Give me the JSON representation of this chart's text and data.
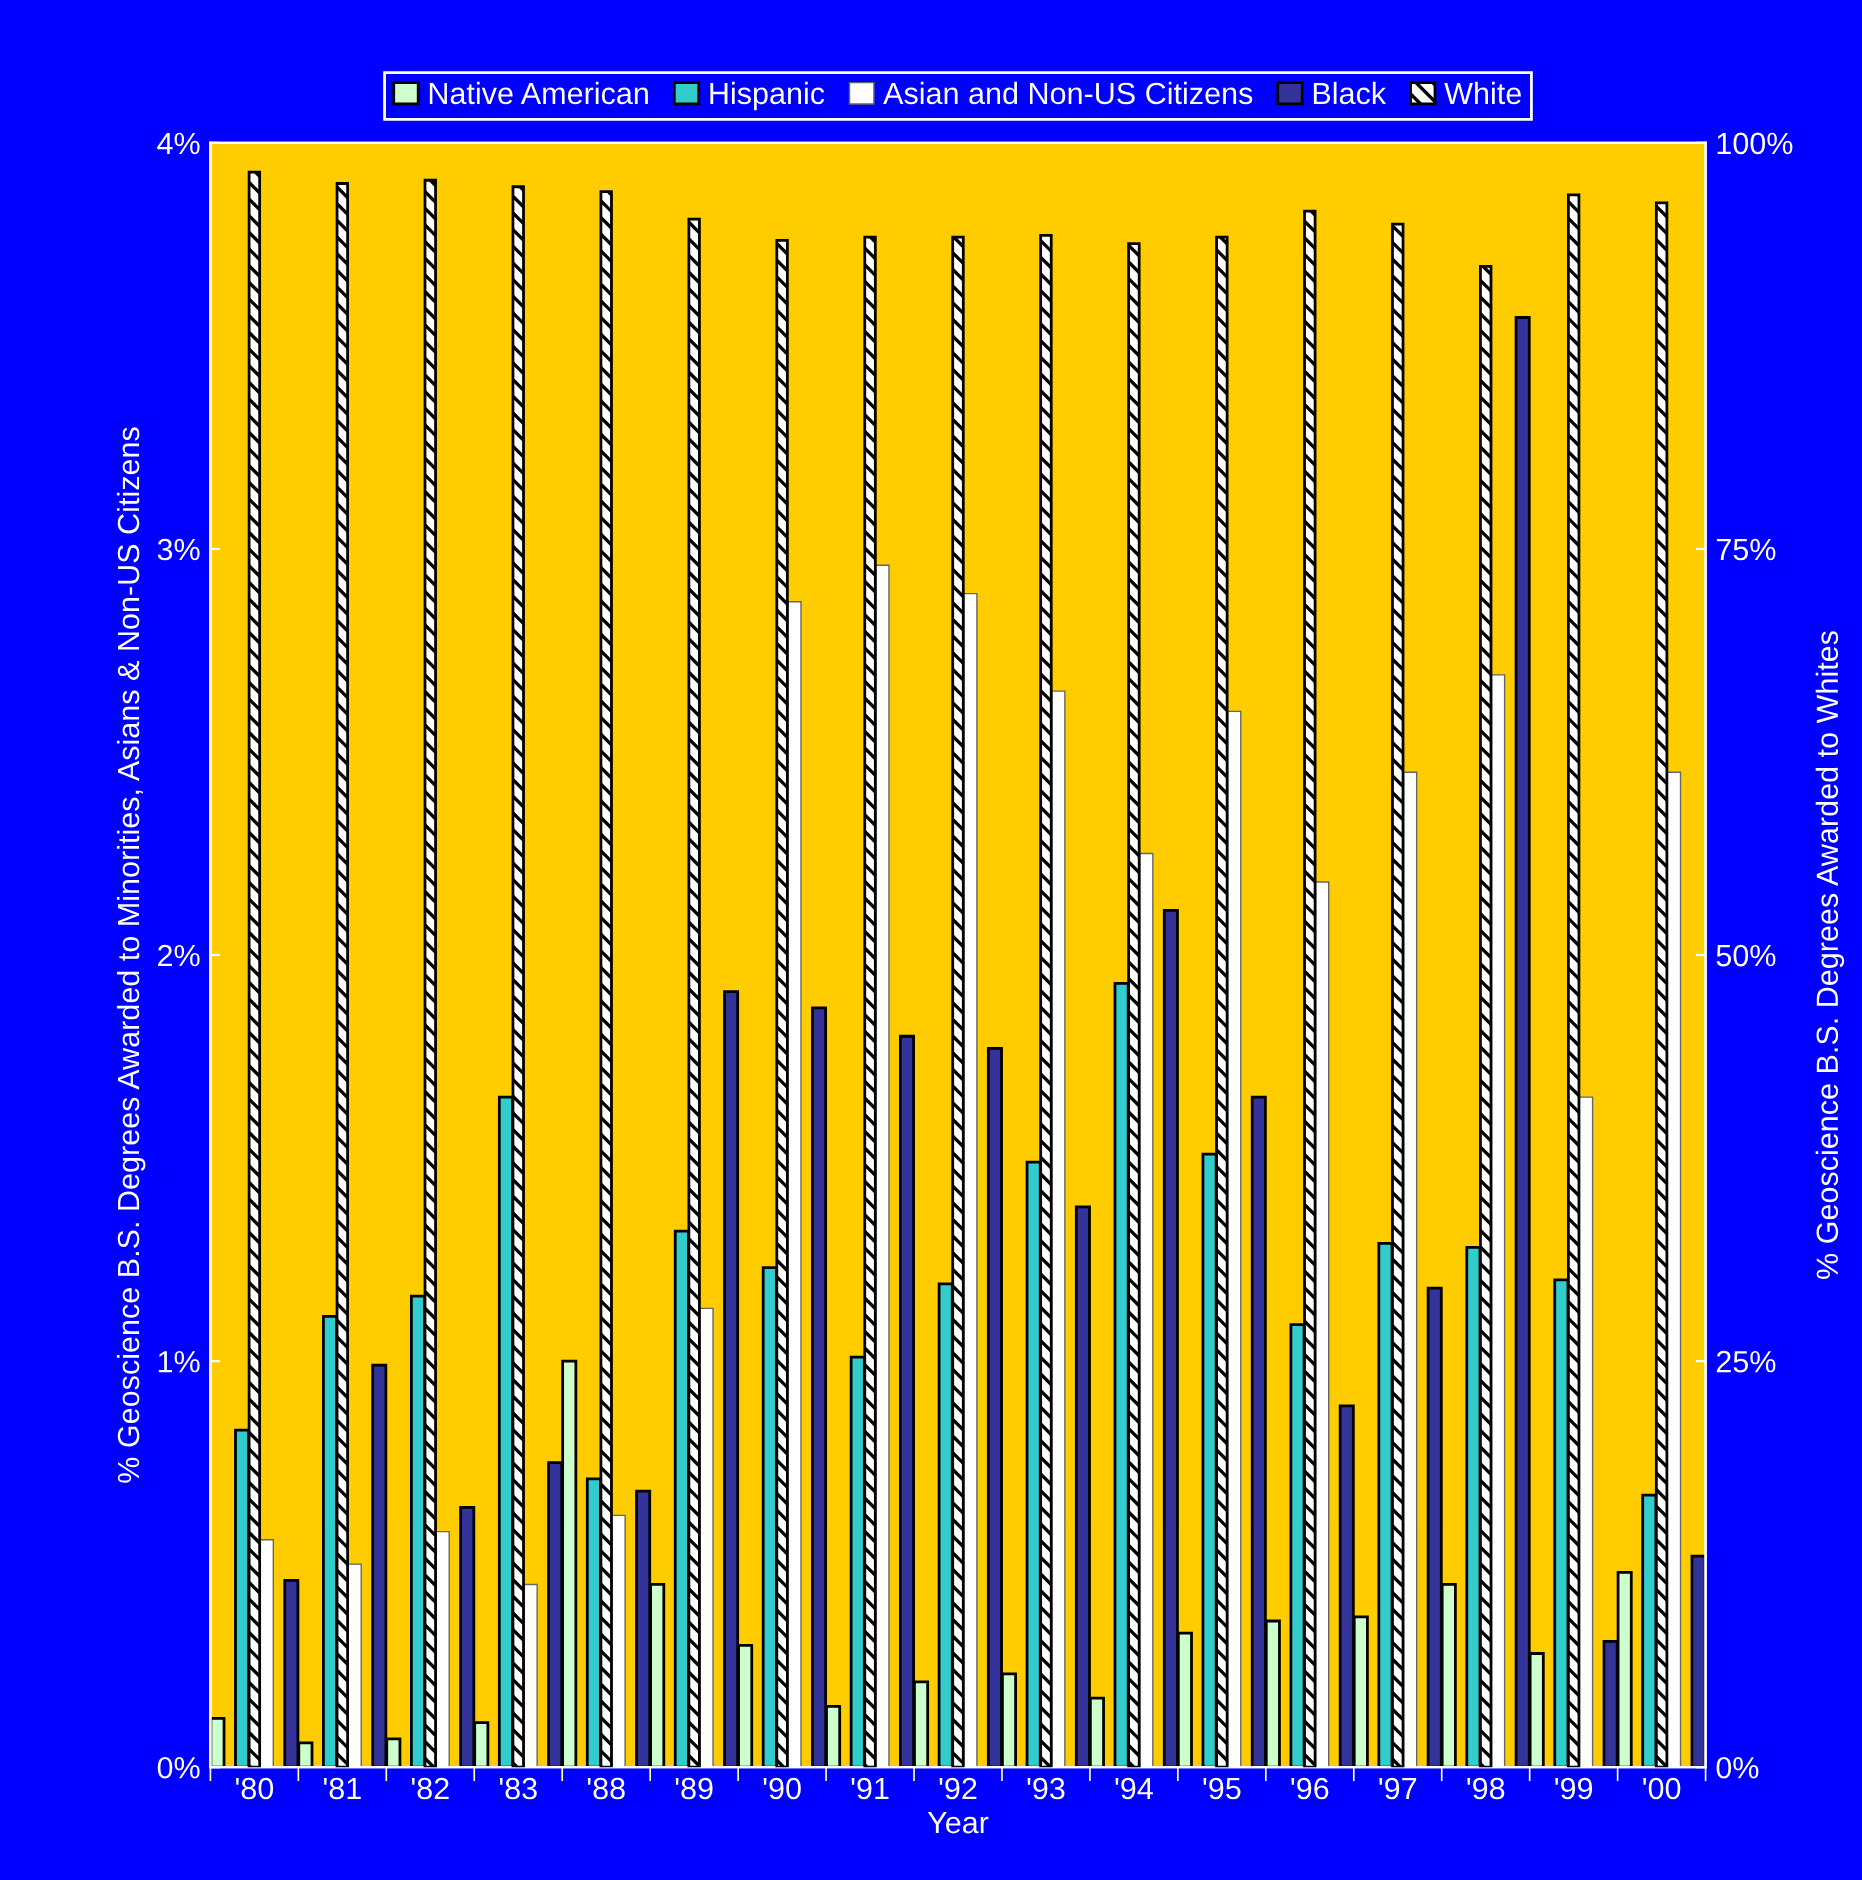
{
  "chart_data": {
    "type": "bar",
    "xlabel": "Year",
    "ylabel": "% Geoscience B.S. Degrees Awarded to Minorities, Asians & Non-US Citizens",
    "y2label": "% Geoscience B.S. Degrees Awarded to Whites",
    "categories": [
      "'80",
      "'81",
      "'82",
      "'83",
      "'88",
      "'89",
      "'90",
      "'91",
      "'92",
      "'93",
      "'94",
      "'95",
      "'96",
      "'97",
      "'98",
      "'99",
      "'00"
    ],
    "series": [
      {
        "name": "Native American",
        "color": "#ccffcc",
        "values": [
          0.12,
          0.06,
          0.07,
          0.11,
          1.0,
          0.45,
          0.3,
          0.15,
          0.21,
          0.23,
          0.17,
          0.33,
          0.36,
          0.37,
          0.45,
          0.28,
          0.48
        ]
      },
      {
        "name": "Hispanic",
        "color": "#33cccc",
        "values": [
          0.83,
          1.11,
          1.16,
          1.65,
          0.71,
          1.32,
          1.23,
          1.01,
          1.19,
          1.49,
          1.93,
          1.51,
          1.09,
          1.29,
          1.28,
          1.2,
          0.67
        ]
      },
      {
        "name": "Asian and Non-US Citizens",
        "color": "#ffffff",
        "values": [
          0.56,
          0.5,
          0.58,
          0.45,
          0.62,
          1.13,
          2.87,
          2.96,
          2.89,
          2.65,
          2.25,
          2.6,
          2.18,
          2.45,
          2.69,
          1.65,
          2.45
        ]
      },
      {
        "name": "Black",
        "color": "#333399",
        "values": [
          0.46,
          0.99,
          0.64,
          0.75,
          0.68,
          1.91,
          1.87,
          1.8,
          1.77,
          1.38,
          2.11,
          1.65,
          0.89,
          1.18,
          3.57,
          0.31,
          0.52
        ]
      },
      {
        "name": "White",
        "color": "#000000",
        "axis": "y2",
        "values": [
          98.2,
          97.5,
          97.7,
          97.3,
          97.0,
          95.3,
          94.0,
          94.2,
          94.2,
          94.3,
          93.8,
          94.2,
          95.8,
          95.0,
          92.4,
          96.8,
          96.3
        ]
      }
    ],
    "ylim": [
      0,
      4
    ],
    "yticks": [
      {
        "value": 0,
        "label": "0%"
      },
      {
        "value": 1,
        "label": "1%"
      },
      {
        "value": 2,
        "label": "2%"
      },
      {
        "value": 3,
        "label": "3%"
      },
      {
        "value": 4,
        "label": "4%"
      }
    ],
    "y2lim": [
      0,
      100
    ],
    "y2ticks": [
      {
        "value": 0,
        "label": "0%"
      },
      {
        "value": 25,
        "label": "25%"
      },
      {
        "value": 50,
        "label": "50%"
      },
      {
        "value": 75,
        "label": "75%"
      },
      {
        "value": 100,
        "label": "100%"
      }
    ],
    "legend": "top",
    "grid": false
  }
}
